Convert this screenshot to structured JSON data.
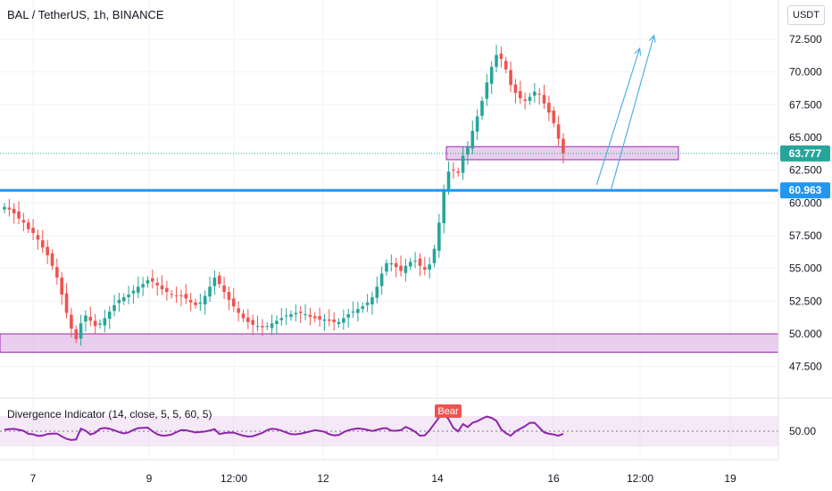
{
  "header": {
    "title": "BAL / TetherUS, 1h, BINANCE",
    "currency": "USDT"
  },
  "colors": {
    "up": "#26a69a",
    "down": "#ef5350",
    "zone_fill": "#e1bee7",
    "zone_border": "#9c27b0",
    "support_line": "#2196f3",
    "indicator": "#8e24aa",
    "arrow": "#4fb3e3",
    "price_tag_bg": "#ffffff"
  },
  "chart_data": {
    "type": "candlestick",
    "title": "BAL / TetherUS, 1h, BINANCE",
    "y_axis": {
      "ylim": [
        45.5,
        75.5
      ],
      "tick_labels": [
        "47.500",
        "50.000",
        "52.500",
        "55.000",
        "57.500",
        "60.000",
        "62.500",
        "65.000",
        "67.500",
        "70.000",
        "72.500"
      ]
    },
    "x_axis": {
      "tick_labels": [
        "7",
        "9",
        "12:00",
        "12",
        "14",
        "16",
        "12:00",
        "19"
      ]
    },
    "price_labels": [
      {
        "value": 63.777,
        "label": "63.777"
      },
      {
        "value": 60.963,
        "label": "60.963"
      }
    ],
    "support_line": 60.963,
    "zones": [
      {
        "from": 48.6,
        "to": 50.0
      },
      {
        "from": 63.3,
        "to": 64.3
      }
    ],
    "close_series": [
      59.7,
      59.5,
      59.2,
      58.8,
      58.5,
      58.0,
      57.7,
      57.2,
      56.6,
      56.0,
      55.2,
      54.3,
      53.0,
      51.6,
      50.4,
      49.6,
      50.8,
      51.4,
      51.0,
      50.6,
      50.8,
      51.2,
      51.7,
      52.2,
      52.6,
      52.8,
      53.0,
      53.3,
      53.6,
      53.8,
      54.1,
      54.0,
      53.7,
      53.4,
      53.2,
      53.0,
      52.9,
      52.9,
      52.7,
      52.4,
      52.2,
      52.4,
      52.9,
      53.6,
      54.3,
      53.8,
      53.2,
      52.6,
      52.1,
      51.6,
      51.2,
      50.9,
      50.7,
      50.6,
      50.5,
      50.6,
      50.8,
      51.0,
      51.2,
      51.4,
      51.5,
      51.6,
      51.6,
      51.5,
      51.3,
      51.2,
      51.1,
      51.1,
      51.0,
      50.9,
      50.9,
      51.2,
      51.5,
      51.7,
      51.9,
      52.1,
      52.4,
      52.8,
      53.6,
      54.6,
      55.4,
      55.4,
      55.1,
      54.8,
      55.2,
      55.5,
      55.6,
      55.2,
      54.9,
      55.3,
      56.5,
      58.5,
      61.0,
      62.4,
      62.5,
      62.3,
      63.6,
      64.3,
      65.5,
      66.6,
      67.8,
      69.2,
      70.4,
      71.3,
      71.0,
      70.2,
      69.0,
      68.4,
      68.0,
      67.8,
      68.1,
      68.5,
      68.3,
      67.6,
      66.9,
      66.1,
      64.9,
      63.8
    ],
    "indicator": {
      "name": "Divergence Indicator (14, close, 5, 5, 60, 5)",
      "tick_label": "50.00",
      "level": 50.0,
      "badge": "Bear"
    },
    "annotations": [
      {
        "type": "arrow",
        "from": {
          "i": 127,
          "y": 61.0
        },
        "to": {
          "i": 136,
          "y": 72.8
        }
      },
      {
        "type": "arrow",
        "from": {
          "i": 124,
          "y": 61.4
        },
        "to": {
          "i": 133,
          "y": 71.8
        }
      }
    ]
  }
}
